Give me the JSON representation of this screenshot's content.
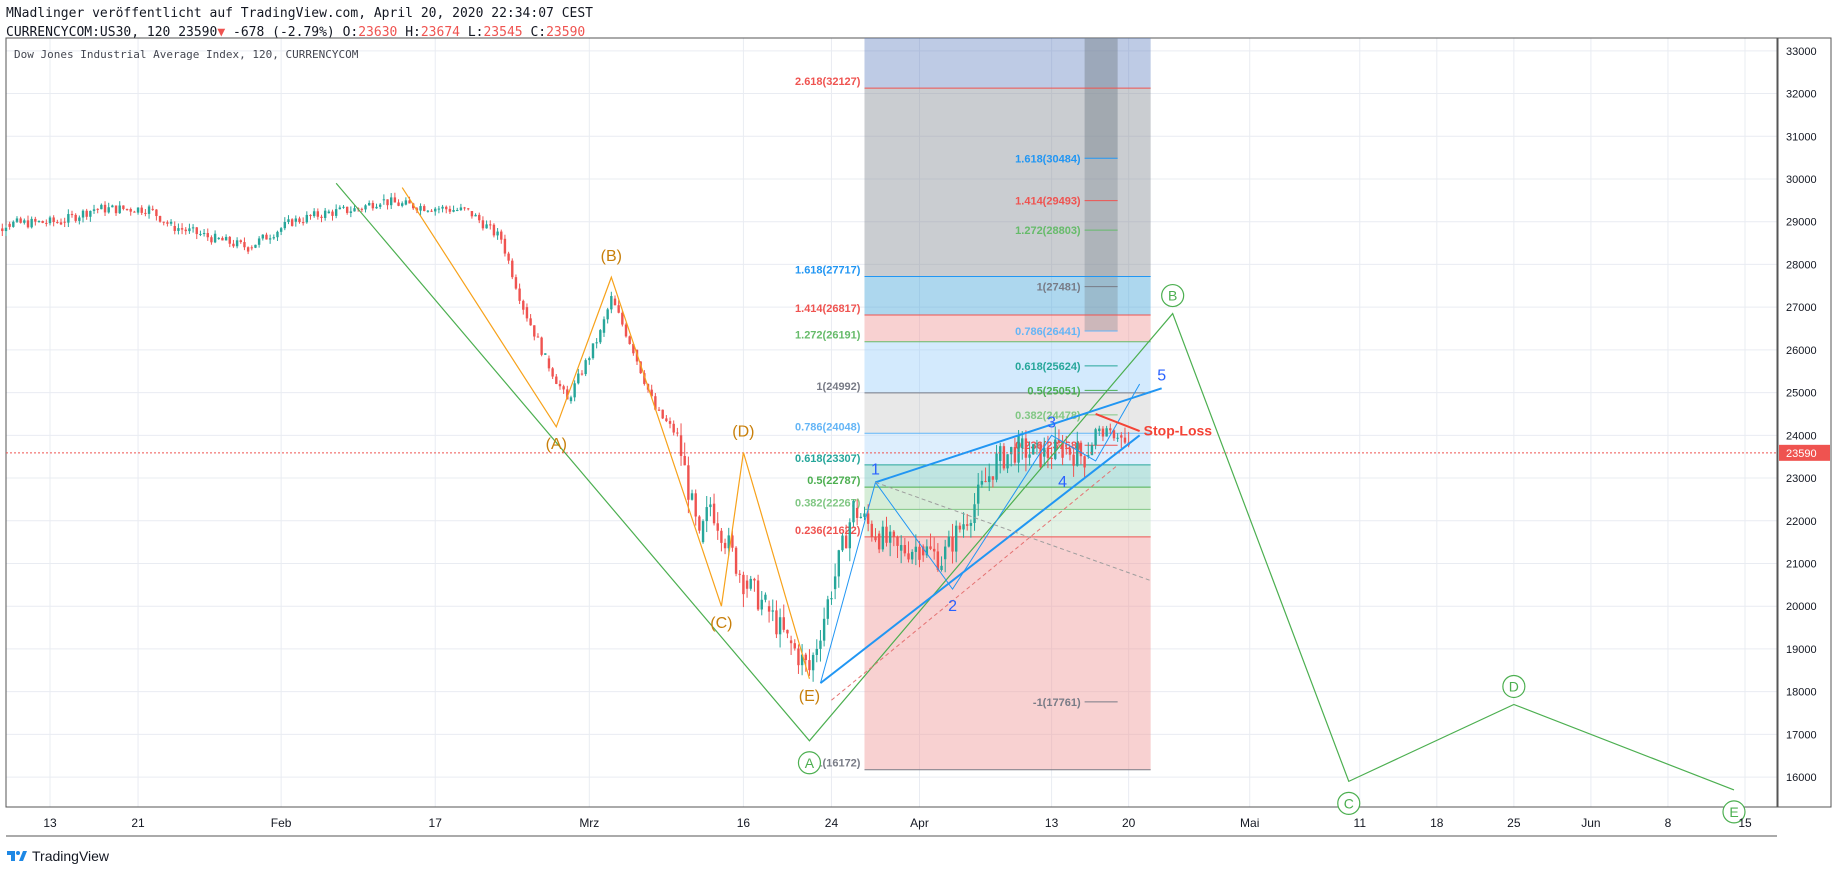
{
  "header": {
    "published": "MNadlinger veröffentlicht auf TradingView.com, April 20, 2020 22:34:07 CEST",
    "symbol": "CURRENCYCOM:US30, 120",
    "last": "23590",
    "change_arrow": "▼",
    "change": "-678 (-2.79%)",
    "o_label": "O:",
    "o_val": "23630",
    "h_label": "H:",
    "h_val": "23674",
    "l_label": "L:",
    "l_val": "23545",
    "c_label": "C:",
    "c_val": "23590"
  },
  "footer": {
    "brand": "TradingView",
    "logo_icon": "tradingview-logo-icon"
  },
  "colors": {
    "grid": "#e9ecf2",
    "up": "#26a69a",
    "down": "#ef5350",
    "price_line": "#ef5350",
    "orange": "#f7a21b",
    "green": "#4caf50",
    "blue": "#2196f3",
    "wave_label": "#2962ff",
    "stoploss": "#f44336"
  },
  "chart_data": {
    "type": "candlestick",
    "title": "Dow Jones Industrial Average Index, 120, CURRENCYCOM",
    "ylim": [
      15300,
      33300
    ],
    "y_ticks": [
      16000,
      17000,
      18000,
      19000,
      20000,
      21000,
      22000,
      23000,
      24000,
      25000,
      26000,
      27000,
      28000,
      29000,
      30000,
      31000,
      32000,
      33000
    ],
    "x_ticks": [
      {
        "label": "13",
        "date": "2020-01-13"
      },
      {
        "label": "21",
        "date": "2020-01-21"
      },
      {
        "label": "Feb",
        "date": "2020-02-03"
      },
      {
        "label": "17",
        "date": "2020-02-17"
      },
      {
        "label": "Mrz",
        "date": "2020-03-02"
      },
      {
        "label": "16",
        "date": "2020-03-16"
      },
      {
        "label": "24",
        "date": "2020-03-24"
      },
      {
        "label": "Apr",
        "date": "2020-04-01"
      },
      {
        "label": "13",
        "date": "2020-04-13"
      },
      {
        "label": "20",
        "date": "2020-04-20"
      },
      {
        "label": "Mai",
        "date": "2020-05-01"
      },
      {
        "label": "11",
        "date": "2020-05-11"
      },
      {
        "label": "18",
        "date": "2020-05-18"
      },
      {
        "label": "25",
        "date": "2020-05-25"
      },
      {
        "label": "Jun",
        "date": "2020-06-01"
      },
      {
        "label": "8",
        "date": "2020-06-08"
      },
      {
        "label": "15",
        "date": "2020-06-15"
      }
    ],
    "current_price": 23590,
    "price_path": [
      [
        "2020-01-06",
        28400
      ],
      [
        "2020-01-09",
        28950
      ],
      [
        "2020-01-14",
        29000
      ],
      [
        "2020-01-17",
        29300
      ],
      [
        "2020-01-22",
        29300
      ],
      [
        "2020-01-24",
        28900
      ],
      [
        "2020-01-28",
        28600
      ],
      [
        "2020-01-31",
        28400
      ],
      [
        "2020-02-04",
        29000
      ],
      [
        "2020-02-07",
        29200
      ],
      [
        "2020-02-10",
        29300
      ],
      [
        "2020-02-12",
        29500
      ],
      [
        "2020-02-14",
        29400
      ],
      [
        "2020-02-18",
        29300
      ],
      [
        "2020-02-20",
        29250
      ],
      [
        "2020-02-23",
        28600
      ],
      [
        "2020-02-25",
        27000
      ],
      [
        "2020-02-27",
        25800
      ],
      [
        "2020-02-29",
        24800
      ],
      [
        "2020-03-03",
        26400
      ],
      [
        "2020-03-04",
        27200
      ],
      [
        "2020-03-06",
        26000
      ],
      [
        "2020-03-08",
        24600
      ],
      [
        "2020-03-10",
        24000
      ],
      [
        "2020-03-12",
        21500
      ],
      [
        "2020-03-13",
        22400
      ],
      [
        "2020-03-16",
        20600
      ],
      [
        "2020-03-18",
        20000
      ],
      [
        "2020-03-20",
        19200
      ],
      [
        "2020-03-22",
        18500
      ],
      [
        "2020-03-24",
        20400
      ],
      [
        "2020-03-26",
        22300
      ],
      [
        "2020-03-28",
        21700
      ],
      [
        "2020-03-30",
        21300
      ],
      [
        "2020-04-01",
        21400
      ],
      [
        "2020-04-03",
        21100
      ],
      [
        "2020-04-06",
        22400
      ],
      [
        "2020-04-08",
        23400
      ],
      [
        "2020-04-10",
        23700
      ],
      [
        "2020-04-12",
        23500
      ],
      [
        "2020-04-14",
        23700
      ],
      [
        "2020-04-16",
        23500
      ],
      [
        "2020-04-17",
        24100
      ],
      [
        "2020-04-19",
        24000
      ],
      [
        "2020-04-20",
        23590
      ]
    ],
    "fibonacci_groups": [
      {
        "levels": [
          {
            "label": "2.618(32127)",
            "value": 32127,
            "color": "#ef5350"
          },
          {
            "label": "1.618(27717)",
            "value": 27717,
            "color": "#2196f3"
          },
          {
            "label": "1.414(26817)",
            "value": 26817,
            "color": "#ef5350"
          },
          {
            "label": "1.272(26191)",
            "value": 26191,
            "color": "#66bb6a"
          },
          {
            "label": "1(24992)",
            "value": 24992,
            "color": "#787b86"
          },
          {
            "label": "0.786(24048)",
            "value": 24048,
            "color": "#64b5f6"
          },
          {
            "label": "0.618(23307)",
            "value": 23307,
            "color": "#26a69a"
          },
          {
            "label": "0.5(22787)",
            "value": 22787,
            "color": "#4caf50"
          },
          {
            "label": "0.382(22267)",
            "value": 22267,
            "color": "#81c784"
          },
          {
            "label": "0.236(21622)",
            "value": 21622,
            "color": "#ef5350"
          },
          {
            "label": "-1(16172)",
            "value": 16172,
            "color": "#787b86"
          }
        ]
      },
      {
        "levels": [
          {
            "label": "1.618(30484)",
            "value": 30484,
            "color": "#2196f3"
          },
          {
            "label": "1.414(29493)",
            "value": 29493,
            "color": "#ef5350"
          },
          {
            "label": "1.272(28803)",
            "value": 28803,
            "color": "#66bb6a"
          },
          {
            "label": "1(27481)",
            "value": 27481,
            "color": "#787b86"
          },
          {
            "label": "0.786(26441)",
            "value": 26441,
            "color": "#64b5f6"
          },
          {
            "label": "0.618(25624)",
            "value": 25624,
            "color": "#26a69a"
          },
          {
            "label": "0.5(25051)",
            "value": 25051,
            "color": "#4caf50"
          },
          {
            "label": "0.382(24478)",
            "value": 24478,
            "color": "#81c784"
          },
          {
            "label": "0.236(23768)",
            "value": 23768,
            "color": "#ef5350"
          },
          {
            "label": "-1(17761)",
            "value": 17761,
            "color": "#787b86"
          }
        ]
      }
    ],
    "orange_abcde": [
      {
        "label": "(A)",
        "date": "2020-02-28",
        "value": 24200
      },
      {
        "label": "(B)",
        "date": "2020-03-04",
        "value": 27700
      },
      {
        "label": "(C)",
        "date": "2020-03-14",
        "value": 20000
      },
      {
        "label": "(D)",
        "date": "2020-03-16",
        "value": 23600
      },
      {
        "label": "(E)",
        "date": "2020-03-22",
        "value": 18300
      }
    ],
    "green_abcde": [
      {
        "label": "A",
        "date": "2020-03-22",
        "value": 16850
      },
      {
        "label": "B",
        "date": "2020-04-24",
        "value": 26850
      },
      {
        "label": "C",
        "date": "2020-05-10",
        "value": 15900
      },
      {
        "label": "D",
        "date": "2020-05-25",
        "value": 17700
      },
      {
        "label": "E",
        "date": "2020-06-14",
        "value": 15700
      }
    ],
    "blue_waves": [
      {
        "label": "1",
        "date": "2020-03-28",
        "value": 22900
      },
      {
        "label": "2",
        "date": "2020-04-04",
        "value": 20400
      },
      {
        "label": "3",
        "date": "2020-04-13",
        "value": 24000
      },
      {
        "label": "4",
        "date": "2020-04-14",
        "value": 23300
      },
      {
        "label": "5",
        "date": "2020-04-23",
        "value": 25100
      }
    ],
    "stop_loss_label": "Stop-Loss"
  }
}
